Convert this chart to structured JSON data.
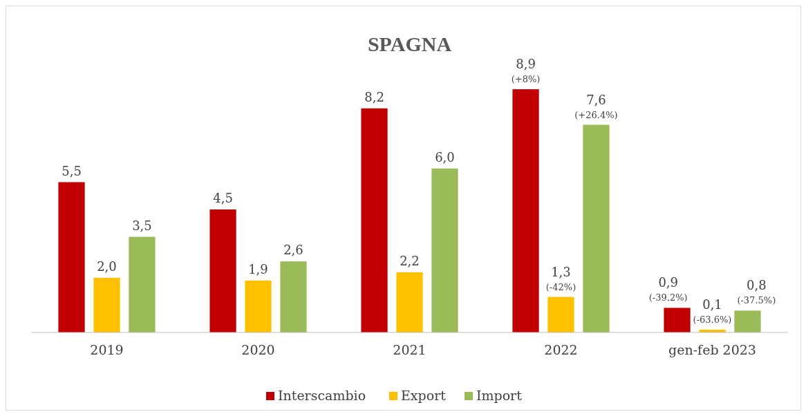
{
  "chart_data": {
    "type": "bar",
    "title": "SPAGNA",
    "categories": [
      "2019",
      "2020",
      "2021",
      "2022",
      "gen-feb 2023"
    ],
    "series": [
      {
        "name": "Interscambio",
        "color": "#c00000",
        "values": [
          5.5,
          4.5,
          8.2,
          8.9,
          0.9
        ],
        "value_labels": [
          "5,5",
          "4,5",
          "8,2",
          "8,9\n(+8%)",
          "0,9\n(-39.2%)"
        ]
      },
      {
        "name": "Export",
        "color": "#ffc000",
        "values": [
          2.0,
          1.9,
          2.2,
          1.3,
          0.1
        ],
        "value_labels": [
          "2,0",
          "1,9",
          "2,2",
          "1,3\n(-42%)",
          "0,1\n(-63.6%)"
        ]
      },
      {
        "name": "Import",
        "color": "#9bbb59",
        "values": [
          3.5,
          2.6,
          6.0,
          7.6,
          0.8
        ],
        "value_labels": [
          "3,5",
          "2,6",
          "6,0",
          "7,6\n(+26.4%)",
          "0,8\n(-37.5%)"
        ]
      }
    ],
    "legend": "bottom"
  }
}
